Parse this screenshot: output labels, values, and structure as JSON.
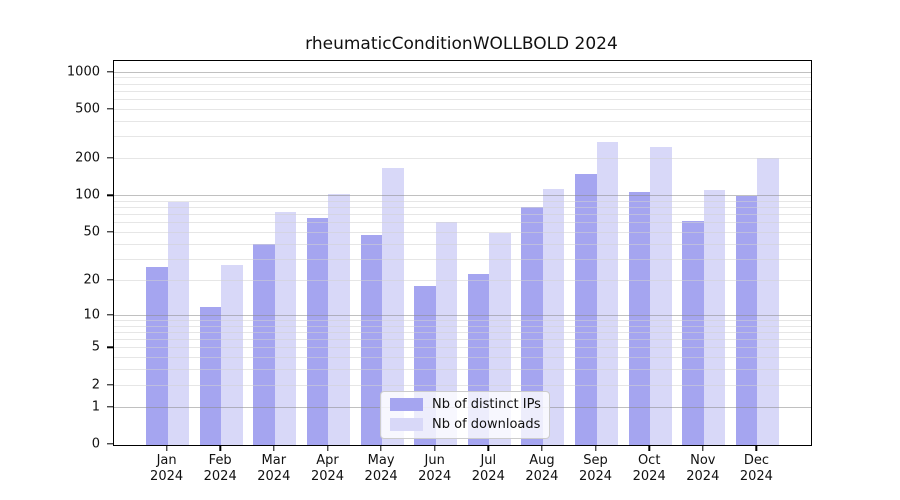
{
  "title": "rheumaticConditionWOLLBOLD 2024",
  "chart_data": {
    "type": "bar",
    "title": "rheumaticConditionWOLLBOLD 2024",
    "xlabel": "",
    "ylabel": "",
    "year": "2024",
    "months": [
      "Jan",
      "Feb",
      "Mar",
      "Apr",
      "May",
      "Jun",
      "Jul",
      "Aug",
      "Sep",
      "Oct",
      "Nov",
      "Dec"
    ],
    "categories": [
      "Jan 2024",
      "Feb 2024",
      "Mar 2024",
      "Apr 2024",
      "May 2024",
      "Jun 2024",
      "Jul 2024",
      "Aug 2024",
      "Sep 2024",
      "Oct 2024",
      "Nov 2024",
      "Dec 2024"
    ],
    "series": [
      {
        "name": "Nb of distinct IPs",
        "key": "distinct-ips",
        "color": "#a5a5f0",
        "values": [
          26,
          12,
          41,
          66,
          48,
          18,
          23,
          82,
          152,
          108,
          63,
          100
        ]
      },
      {
        "name": "Nb of downloads",
        "key": "downloads",
        "color": "#d8d8f8",
        "values": [
          90,
          27,
          75,
          105,
          170,
          62,
          50,
          115,
          275,
          250,
          112,
          205
        ]
      }
    ],
    "scale": "log1p",
    "ylim": [
      0,
      1240
    ],
    "y_ticks": [
      0,
      1,
      2,
      5,
      10,
      20,
      50,
      100,
      200,
      500,
      1000
    ],
    "y_major_gridlines": [
      1,
      10,
      100,
      1000
    ],
    "y_minor_gridlines": [
      2,
      3,
      4,
      5,
      6,
      7,
      8,
      9,
      20,
      30,
      40,
      50,
      60,
      70,
      80,
      90,
      200,
      300,
      400,
      500,
      600,
      700,
      800,
      900
    ],
    "grid": "on",
    "legend_position": "lower center"
  },
  "colors": {
    "bar_distinct_ips": "#a5a5f0",
    "bar_downloads": "#d8d8f8",
    "axis": "#000000",
    "text": "#111111",
    "grid_major": "#8c8c8c",
    "grid_minor": "#d2d2d2",
    "legend_border": "#cccccc",
    "background": "#ffffff"
  }
}
